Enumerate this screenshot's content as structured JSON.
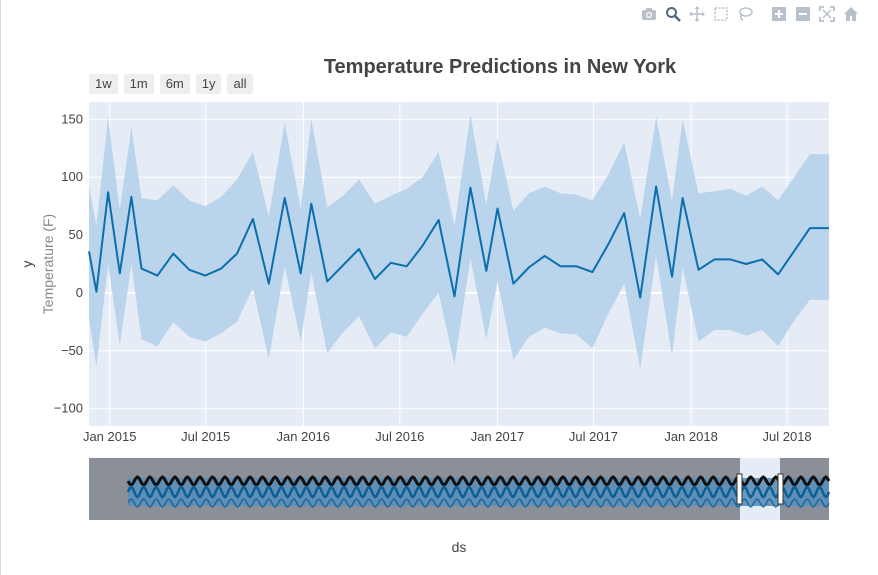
{
  "toolbar": {
    "icons": [
      "camera-icon",
      "zoom-icon",
      "pan-icon",
      "box-select-icon",
      "lasso-icon",
      "zoom-in-icon",
      "zoom-out-icon",
      "autoscale-icon",
      "home-icon"
    ]
  },
  "range_selector": [
    "1w",
    "1m",
    "6m",
    "1y",
    "all"
  ],
  "chart_data": {
    "type": "line",
    "title": "Temperature Predictions in New York",
    "xlabel": "ds",
    "ylabel": "y",
    "ylabel_secondary": "Temperature (F)",
    "ylim": [
      -115,
      165
    ],
    "yticks": [
      150,
      100,
      50,
      0,
      -50,
      -100
    ],
    "ytick_labels": [
      "150",
      "100",
      "50",
      "0",
      "−50",
      "−100"
    ],
    "xlim": [
      "2014-11-23",
      "2018-09-18"
    ],
    "xticks": [
      "2015-01-01",
      "2015-07-01",
      "2016-01-01",
      "2016-07-01",
      "2017-01-01",
      "2017-07-01",
      "2018-01-01",
      "2018-07-01"
    ],
    "xtick_labels": [
      "Jan 2015",
      "Jul 2015",
      "Jan 2016",
      "Jul 2016",
      "Jan 2017",
      "Jul 2017",
      "Jan 2018",
      "Jul 2018"
    ],
    "grid": true,
    "series": [
      {
        "x": [
          "2014-11-23",
          "2014-12-07",
          "2014-12-29",
          "2015-01-20",
          "2015-02-11",
          "2015-03-02",
          "2015-04-01",
          "2015-05-01",
          "2015-05-31",
          "2015-06-30",
          "2015-07-30",
          "2015-08-29",
          "2015-09-28",
          "2015-10-28",
          "2015-11-27",
          "2015-12-27",
          "2016-01-16",
          "2016-02-15",
          "2016-03-16",
          "2016-04-15",
          "2016-05-15",
          "2016-06-14",
          "2016-07-14",
          "2016-08-13",
          "2016-09-12",
          "2016-10-12",
          "2016-11-11",
          "2016-12-11",
          "2017-01-01",
          "2017-01-31",
          "2017-03-01",
          "2017-03-31",
          "2017-04-30",
          "2017-05-30",
          "2017-06-29",
          "2017-07-29",
          "2017-08-28",
          "2017-09-27",
          "2017-10-27",
          "2017-11-26",
          "2017-12-16",
          "2018-01-15",
          "2018-02-14",
          "2018-03-16",
          "2018-04-15",
          "2018-05-15",
          "2018-06-14",
          "2018-07-14",
          "2018-08-13",
          "2018-09-18"
        ],
        "y": [
          36,
          1,
          87,
          17,
          83,
          21,
          15,
          34,
          20,
          15,
          21,
          34,
          64,
          8,
          82,
          17,
          77,
          10,
          24,
          38,
          12,
          26,
          23,
          41,
          63,
          -3,
          91,
          19,
          73,
          8,
          22,
          32,
          23,
          23,
          18,
          42,
          69,
          -4,
          92,
          14,
          82,
          20,
          29,
          29,
          25,
          29,
          16,
          36,
          56,
          56
        ],
        "upper": [
          92,
          58,
          152,
          72,
          143,
          82,
          80,
          93,
          80,
          75,
          83,
          98,
          122,
          66,
          147,
          73,
          150,
          74,
          84,
          98,
          77,
          84,
          90,
          100,
          122,
          58,
          154,
          76,
          133,
          71,
          86,
          92,
          86,
          85,
          80,
          102,
          130,
          64,
          152,
          80,
          150,
          86,
          88,
          90,
          84,
          92,
          80,
          100,
          120,
          120
        ],
        "lower": [
          -22,
          -64,
          25,
          -45,
          25,
          -40,
          -46,
          -25,
          -38,
          -42,
          -35,
          -25,
          4,
          -57,
          23,
          -42,
          18,
          -52,
          -34,
          -20,
          -48,
          -34,
          -38,
          -18,
          0,
          -62,
          30,
          -40,
          10,
          -58,
          -38,
          -30,
          -35,
          -36,
          -48,
          -18,
          8,
          -66,
          32,
          -54,
          22,
          -42,
          -32,
          -32,
          -37,
          -32,
          -46,
          -24,
          -6,
          -6
        ]
      }
    ],
    "rangeslider": {
      "visible": true,
      "window": [
        "2014-11-23",
        "2018-09-18"
      ]
    }
  }
}
